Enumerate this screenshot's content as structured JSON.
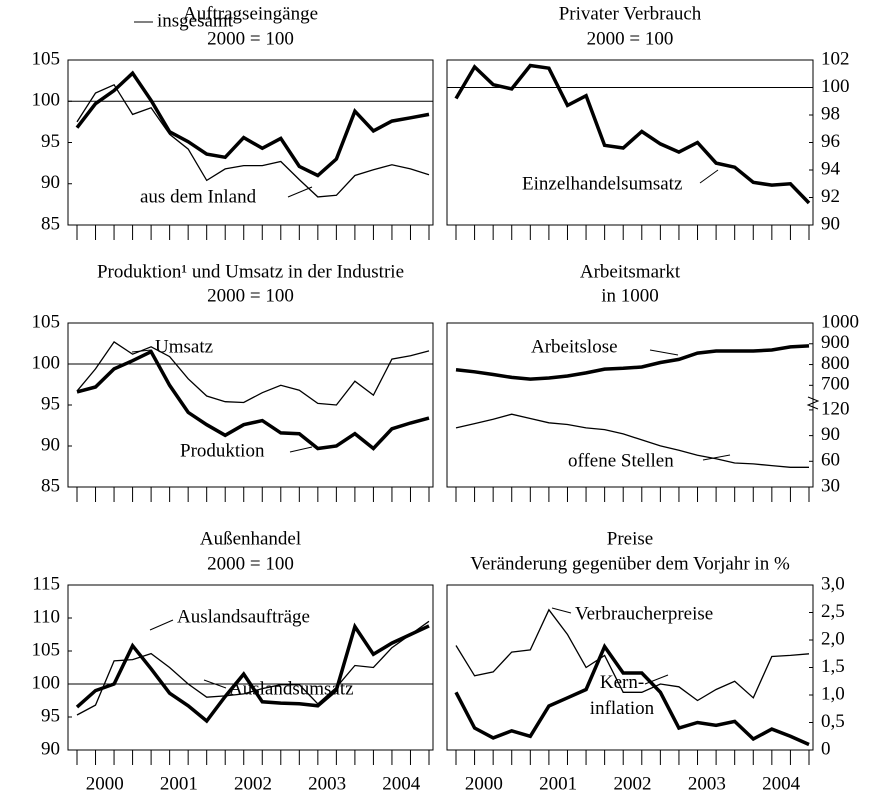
{
  "chart_data": [
    {
      "type": "line",
      "title": "Auftragseingänge",
      "subtitle": "2000 = 100",
      "axis_side": "left",
      "categories": [
        null,
        null,
        null,
        null,
        null,
        null,
        null,
        null,
        null,
        null,
        null,
        null,
        null,
        null,
        null,
        null,
        null,
        null,
        null,
        null
      ],
      "ylim": [
        85,
        105
      ],
      "yticks": [
        85,
        90,
        95,
        100,
        105
      ],
      "hline": 100,
      "series": [
        {
          "name": "insgesamt",
          "color": "#000000",
          "linewidth": 3.5,
          "values": [
            96.8,
            99.7,
            101.3,
            103.4,
            100.1,
            96.3,
            95.1,
            93.6,
            93.2,
            95.6,
            94.3,
            95.5,
            92.1,
            91.0,
            93.0,
            98.8,
            96.4,
            97.6,
            98.0,
            98.4
          ]
        },
        {
          "name": "aus dem Inland",
          "color": "#000000",
          "linewidth": 1.3,
          "values": [
            97.5,
            101.0,
            102.0,
            98.4,
            99.2,
            96.0,
            94.2,
            90.4,
            91.8,
            92.2,
            92.2,
            92.7,
            90.5,
            88.4,
            88.6,
            91.0,
            91.7,
            92.3,
            91.8,
            91.1
          ]
        }
      ]
    },
    {
      "type": "line",
      "title": "Privater Verbrauch",
      "subtitle": "2000 = 100",
      "axis_side": "right",
      "categories": [
        null,
        null,
        null,
        null,
        null,
        null,
        null,
        null,
        null,
        null,
        null,
        null,
        null,
        null,
        null,
        null,
        null,
        null,
        null,
        null
      ],
      "ylim": [
        90,
        102
      ],
      "yticks": [
        90,
        92,
        94,
        96,
        98,
        100,
        102
      ],
      "hline": 100,
      "series": [
        {
          "name": "Einzelhandelsumsatz",
          "color": "#000000",
          "linewidth": 3.5,
          "values": [
            99.2,
            101.5,
            100.2,
            99.9,
            101.6,
            101.4,
            98.7,
            99.4,
            95.8,
            95.6,
            96.8,
            95.9,
            95.3,
            96.0,
            94.5,
            94.2,
            93.1,
            92.9,
            93.0,
            91.6
          ]
        }
      ]
    },
    {
      "type": "line",
      "title": "Produktion¹ und Umsatz in der Industrie",
      "subtitle": "2000 = 100",
      "axis_side": "left",
      "categories": [
        null,
        null,
        null,
        null,
        null,
        null,
        null,
        null,
        null,
        null,
        null,
        null,
        null,
        null,
        null,
        null,
        null,
        null,
        null,
        null
      ],
      "ylim": [
        85,
        105
      ],
      "yticks": [
        85,
        90,
        95,
        100,
        105
      ],
      "hline": 100,
      "series": [
        {
          "name": "Umsatz",
          "color": "#000000",
          "linewidth": 1.3,
          "values": [
            96.7,
            99.4,
            102.7,
            101.2,
            102.1,
            100.9,
            98.2,
            96.1,
            95.4,
            95.3,
            96.5,
            97.4,
            96.8,
            95.2,
            95.0,
            97.9,
            96.2,
            100.6,
            101.0,
            101.6
          ]
        },
        {
          "name": "Produktion",
          "color": "#000000",
          "linewidth": 3.5,
          "values": [
            96.6,
            97.2,
            99.4,
            100.4,
            101.5,
            97.4,
            94.1,
            92.6,
            91.3,
            92.6,
            93.1,
            91.6,
            91.5,
            89.7,
            90.0,
            91.5,
            89.7,
            92.1,
            92.8,
            93.4
          ]
        }
      ]
    },
    {
      "type": "line",
      "title": "Arbeitsmarkt",
      "subtitle": "in 1000",
      "axis_side": "right",
      "axis_break": true,
      "categories": [
        null,
        null,
        null,
        null,
        null,
        null,
        null,
        null,
        null,
        null,
        null,
        null,
        null,
        null,
        null,
        null,
        null,
        null,
        null,
        null
      ],
      "ylim": [
        700,
        1000
      ],
      "yticks": [
        700,
        800,
        900,
        1000
      ],
      "y2lim": [
        30,
        120
      ],
      "y2ticks": [
        30,
        60,
        90,
        120
      ],
      "series": [
        {
          "name": "Arbeitslose",
          "color": "#000000",
          "linewidth": 3.5,
          "values": [
            775,
            765,
            752,
            738,
            730,
            735,
            745,
            760,
            778,
            782,
            788,
            810,
            825,
            855,
            865,
            865,
            865,
            870,
            885,
            890
          ]
        },
        {
          "name": "offene Stellen",
          "color": "#000000",
          "linewidth": 1.3,
          "axis": "y2",
          "values": [
            99,
            104,
            109,
            115,
            110,
            105,
            103,
            99,
            97,
            92,
            85,
            78,
            73,
            67,
            63,
            58,
            57,
            55,
            53,
            53
          ]
        }
      ]
    },
    {
      "type": "line",
      "title": "Außenhandel",
      "subtitle": "2000 = 100",
      "axis_side": "left",
      "categories": [
        null,
        "2000",
        null,
        null,
        null,
        "2001",
        null,
        null,
        null,
        "2002",
        null,
        null,
        null,
        "2003",
        null,
        null,
        null,
        "2004",
        null,
        null
      ],
      "ylim": [
        90,
        115
      ],
      "yticks": [
        90,
        95,
        100,
        105,
        110,
        115
      ],
      "hline": 100,
      "series": [
        {
          "name": "Auslandsaufträge",
          "color": "#000000",
          "linewidth": 3.5,
          "values": [
            96.5,
            99.0,
            100.0,
            105.8,
            102.3,
            98.6,
            96.7,
            94.4,
            98.1,
            101.5,
            97.3,
            97.1,
            97.0,
            96.7,
            99.1,
            108.7,
            104.5,
            106.2,
            107.5,
            108.8
          ]
        },
        {
          "name": "Auslandsumsatz",
          "color": "#000000",
          "linewidth": 1.3,
          "values": [
            95.3,
            96.8,
            103.5,
            103.7,
            104.6,
            102.5,
            100.0,
            98.0,
            98.2,
            98.5,
            99.3,
            99.9,
            99.9,
            97.0,
            99.5,
            102.8,
            102.5,
            105.5,
            107.5,
            109.5
          ]
        }
      ]
    },
    {
      "type": "line",
      "title": "Preise",
      "subtitle": "Veränderung gegenüber dem Vorjahr in %",
      "axis_side": "right",
      "categories": [
        null,
        "2000",
        null,
        null,
        null,
        "2001",
        null,
        null,
        null,
        "2002",
        null,
        null,
        null,
        "2003",
        null,
        null,
        null,
        "2004",
        null,
        null
      ],
      "ylim": [
        0,
        3
      ],
      "yticks": [
        0,
        {
          "value": 0.5,
          "label": "0,5"
        },
        {
          "value": 1,
          "label": "1,0"
        },
        {
          "value": 1.5,
          "label": "1,5"
        },
        {
          "value": 2,
          "label": "2,0"
        },
        {
          "value": 2.5,
          "label": "2,5"
        },
        {
          "value": 3,
          "label": "3,0"
        }
      ],
      "series": [
        {
          "name": "Verbraucherpreise",
          "color": "#000000",
          "linewidth": 1.3,
          "values": [
            1.9,
            1.35,
            1.42,
            1.78,
            1.82,
            2.55,
            2.1,
            1.5,
            1.72,
            1.05,
            1.05,
            1.2,
            1.15,
            0.9,
            1.1,
            1.25,
            0.95,
            1.7,
            1.72,
            1.75
          ]
        },
        {
          "name": "Kern-\ninflation",
          "color": "#000000",
          "linewidth": 3.5,
          "values": [
            1.05,
            0.4,
            0.22,
            0.35,
            0.25,
            0.8,
            0.95,
            1.1,
            1.88,
            1.4,
            1.4,
            1.05,
            0.4,
            0.5,
            0.45,
            0.52,
            0.2,
            0.38,
            0.25,
            0.1
          ]
        }
      ]
    }
  ]
}
